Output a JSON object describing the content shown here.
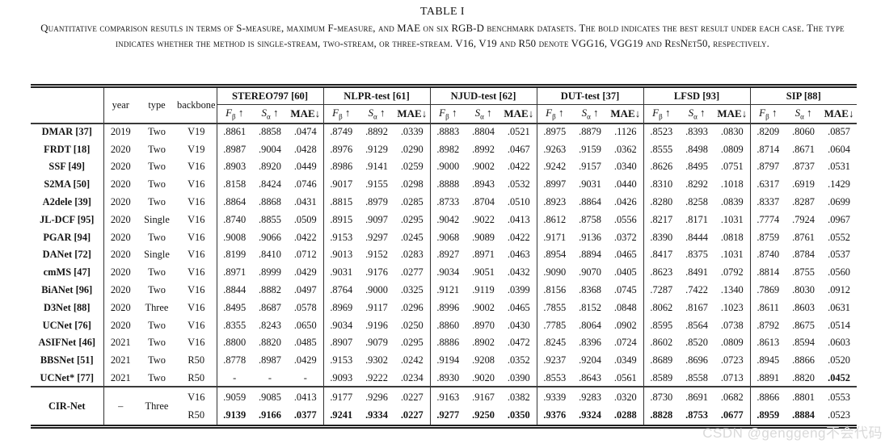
{
  "title": "TABLE I",
  "caption": "Quantitative comparison resutls in terms of S-measure, maximum F-measure, and MAE on six RGB-D benchmark datasets. The bold indicates the best result under each case. The type indicates whether the method is single-stream, two-stream, or three-stream. V16, V19 and R50 denote VGG16, VGG19 and ResNet50, respectively.",
  "watermark": "CSDN @genggeng不会代码",
  "table": {
    "corner_label": "",
    "meta_headers": [
      "year",
      "type",
      "backbone"
    ],
    "datasets": [
      "STEREO797 [60]",
      "NLPR-test [61]",
      "NJUD-test [62]",
      "DUT-test [37]",
      "LFSD [93]",
      "SIP [88]"
    ],
    "metrics": [
      {
        "base": "F",
        "sub": "β",
        "italic": true,
        "bold": false,
        "dir": "↑"
      },
      {
        "base": "S",
        "sub": "α",
        "italic": true,
        "bold": false,
        "dir": "↑"
      },
      {
        "base": "MAE",
        "sub": "",
        "italic": false,
        "bold": true,
        "dir": "↓"
      }
    ],
    "rows": [
      {
        "method": "DMAR [37]",
        "year": "2019",
        "type": "Two",
        "backbone": "V19",
        "bold": [],
        "values": [
          ".8861",
          ".8858",
          ".0474",
          ".8749",
          ".8892",
          ".0339",
          ".8883",
          ".8804",
          ".0521",
          ".8975",
          ".8879",
          ".1126",
          ".8523",
          ".8393",
          ".0830",
          ".8209",
          ".8060",
          ".0857"
        ]
      },
      {
        "method": "FRDT [18]",
        "year": "2020",
        "type": "Two",
        "backbone": "V19",
        "bold": [],
        "values": [
          ".8987",
          ".9004",
          ".0428",
          ".8976",
          ".9129",
          ".0290",
          ".8982",
          ".8992",
          ".0467",
          ".9263",
          ".9159",
          ".0362",
          ".8555",
          ".8498",
          ".0809",
          ".8714",
          ".8671",
          ".0604"
        ]
      },
      {
        "method": "SSF [49]",
        "year": "2020",
        "type": "Two",
        "backbone": "V16",
        "bold": [],
        "values": [
          ".8903",
          ".8920",
          ".0449",
          ".8986",
          ".9141",
          ".0259",
          ".9000",
          ".9002",
          ".0422",
          ".9242",
          ".9157",
          ".0340",
          ".8626",
          ".8495",
          ".0751",
          ".8797",
          ".8737",
          ".0531"
        ]
      },
      {
        "method": "S2MA [50]",
        "year": "2020",
        "type": "Two",
        "backbone": "V16",
        "bold": [],
        "values": [
          ".8158",
          ".8424",
          ".0746",
          ".9017",
          ".9155",
          ".0298",
          ".8888",
          ".8943",
          ".0532",
          ".8997",
          ".9031",
          ".0440",
          ".8310",
          ".8292",
          ".1018",
          ".6317",
          ".6919",
          ".1429"
        ]
      },
      {
        "method": "A2dele [39]",
        "year": "2020",
        "type": "Two",
        "backbone": "V16",
        "bold": [],
        "values": [
          ".8864",
          ".8868",
          ".0431",
          ".8815",
          ".8979",
          ".0285",
          ".8733",
          ".8704",
          ".0510",
          ".8923",
          ".8864",
          ".0426",
          ".8280",
          ".8258",
          ".0839",
          ".8337",
          ".8287",
          ".0699"
        ]
      },
      {
        "method": "JL-DCF [95]",
        "year": "2020",
        "type": "Single",
        "backbone": "V16",
        "bold": [],
        "values": [
          ".8740",
          ".8855",
          ".0509",
          ".8915",
          ".9097",
          ".0295",
          ".9042",
          ".9022",
          ".0413",
          ".8612",
          ".8758",
          ".0556",
          ".8217",
          ".8171",
          ".1031",
          ".7774",
          ".7924",
          ".0967"
        ]
      },
      {
        "method": "PGAR [94]",
        "year": "2020",
        "type": "Two",
        "backbone": "V16",
        "bold": [],
        "values": [
          ".9008",
          ".9066",
          ".0422",
          ".9153",
          ".9297",
          ".0245",
          ".9068",
          ".9089",
          ".0422",
          ".9171",
          ".9136",
          ".0372",
          ".8390",
          ".8444",
          ".0818",
          ".8759",
          ".8761",
          ".0552"
        ]
      },
      {
        "method": "DANet [72]",
        "year": "2020",
        "type": "Single",
        "backbone": "V16",
        "bold": [],
        "values": [
          ".8199",
          ".8410",
          ".0712",
          ".9013",
          ".9152",
          ".0283",
          ".8927",
          ".8971",
          ".0463",
          ".8954",
          ".8894",
          ".0465",
          ".8417",
          ".8375",
          ".1031",
          ".8740",
          ".8784",
          ".0537"
        ]
      },
      {
        "method": "cmMS [47]",
        "year": "2020",
        "type": "Two",
        "backbone": "V16",
        "bold": [],
        "values": [
          ".8971",
          ".8999",
          ".0429",
          ".9031",
          ".9176",
          ".0277",
          ".9034",
          ".9051",
          ".0432",
          ".9090",
          ".9070",
          ".0405",
          ".8623",
          ".8491",
          ".0792",
          ".8814",
          ".8755",
          ".0560"
        ]
      },
      {
        "method": "BiANet [96]",
        "year": "2020",
        "type": "Two",
        "backbone": "V16",
        "bold": [],
        "values": [
          ".8844",
          ".8882",
          ".0497",
          ".8764",
          ".9000",
          ".0325",
          ".9121",
          ".9119",
          ".0399",
          ".8156",
          ".8368",
          ".0745",
          ".7287",
          ".7422",
          ".1340",
          ".7869",
          ".8030",
          ".0912"
        ]
      },
      {
        "method": "D3Net [88]",
        "year": "2020",
        "type": "Three",
        "backbone": "V16",
        "bold": [],
        "values": [
          ".8495",
          ".8687",
          ".0578",
          ".8969",
          ".9117",
          ".0296",
          ".8996",
          ".9002",
          ".0465",
          ".7855",
          ".8152",
          ".0848",
          ".8062",
          ".8167",
          ".1023",
          ".8611",
          ".8603",
          ".0631"
        ]
      },
      {
        "method": "UCNet [76]",
        "year": "2020",
        "type": "Two",
        "backbone": "V16",
        "bold": [],
        "values": [
          ".8355",
          ".8243",
          ".0650",
          ".9034",
          ".9196",
          ".0250",
          ".8860",
          ".8970",
          ".0430",
          ".7785",
          ".8064",
          ".0902",
          ".8595",
          ".8564",
          ".0738",
          ".8792",
          ".8675",
          ".0514"
        ]
      },
      {
        "method": "ASIFNet [46]",
        "year": "2021",
        "type": "Two",
        "backbone": "V16",
        "bold": [],
        "values": [
          ".8800",
          ".8820",
          ".0485",
          ".8907",
          ".9079",
          ".0295",
          ".8886",
          ".8902",
          ".0472",
          ".8245",
          ".8396",
          ".0724",
          ".8602",
          ".8520",
          ".0809",
          ".8613",
          ".8594",
          ".0603"
        ]
      },
      {
        "method": "BBSNet [51]",
        "year": "2021",
        "type": "Two",
        "backbone": "R50",
        "bold": [],
        "values": [
          ".8778",
          ".8987",
          ".0429",
          ".9153",
          ".9302",
          ".0242",
          ".9194",
          ".9208",
          ".0352",
          ".9237",
          ".9204",
          ".0349",
          ".8689",
          ".8696",
          ".0723",
          ".8945",
          ".8866",
          ".0520"
        ]
      },
      {
        "method": "UCNet* [77]",
        "year": "2021",
        "type": "Two",
        "backbone": "R50",
        "bold": [
          17
        ],
        "values": [
          "-",
          "-",
          "-",
          ".9093",
          ".9222",
          ".0234",
          ".8930",
          ".9020",
          ".0390",
          ".8553",
          ".8643",
          ".0561",
          ".8589",
          ".8558",
          ".0713",
          ".8891",
          ".8820",
          ".0452"
        ]
      }
    ],
    "cirnet": {
      "method": "CIR-Net",
      "year": "–",
      "type": "Three",
      "variants": [
        {
          "backbone": "V16",
          "bold": [],
          "values": [
            ".9059",
            ".9085",
            ".0413",
            ".9177",
            ".9296",
            ".0227",
            ".9163",
            ".9167",
            ".0382",
            ".9339",
            ".9283",
            ".0320",
            ".8730",
            ".8691",
            ".0682",
            ".8866",
            ".8801",
            ".0553"
          ]
        },
        {
          "backbone": "R50",
          "bold": [
            0,
            1,
            2,
            3,
            4,
            5,
            6,
            7,
            8,
            9,
            10,
            11,
            12,
            13,
            14,
            15,
            16
          ],
          "values": [
            ".9139",
            ".9166",
            ".0377",
            ".9241",
            ".9334",
            ".0227",
            ".9277",
            ".9250",
            ".0350",
            ".9376",
            ".9324",
            ".0288",
            ".8828",
            ".8753",
            ".0677",
            ".8959",
            ".8884",
            ".0523"
          ]
        }
      ]
    }
  }
}
